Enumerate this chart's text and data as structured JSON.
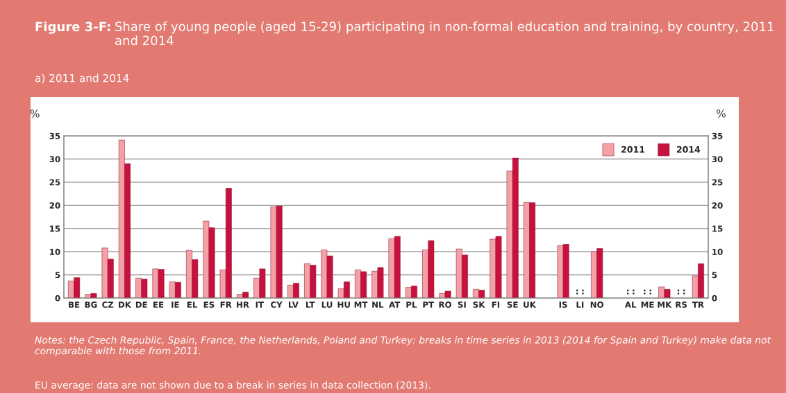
{
  "chart_data": {
    "type": "bar",
    "title": "Figure 3-F:",
    "subtitle": "Share of young people (aged 15-29) participating in non-formal education and training, by country, 2011 and 2014",
    "ylabel": "%",
    "y2label": "%",
    "categories": [
      "BE",
      "BG",
      "CZ",
      "DK",
      "DE",
      "EE",
      "IE",
      "EL",
      "ES",
      "FR",
      "HR",
      "IT",
      "CY",
      "LV",
      "LT",
      "LU",
      "HU",
      "MT",
      "NL",
      "AT",
      "PL",
      "PT",
      "RO",
      "SI",
      "SK",
      "FI",
      "SE",
      "UK",
      null,
      "IS",
      "LI",
      "NO",
      null,
      "AL",
      "ME",
      "MK",
      "RS",
      "TR"
    ],
    "series": [
      {
        "name": "2011",
        "color": "#f4a0a6",
        "values": [
          3.7,
          0.8,
          10.8,
          34.1,
          4.3,
          6.3,
          3.5,
          10.3,
          16.6,
          6.1,
          0.8,
          4.3,
          19.7,
          2.8,
          7.4,
          10.4,
          2.0,
          6.1,
          5.8,
          12.8,
          2.3,
          10.4,
          1.0,
          10.6,
          1.9,
          12.7,
          27.4,
          20.7,
          null,
          11.3,
          null,
          10.0,
          null,
          null,
          null,
          2.4,
          null,
          4.8
        ],
        "value_labels": [
          null,
          null,
          null,
          null,
          null,
          null,
          null,
          null,
          null,
          null,
          null,
          null,
          null,
          null,
          null,
          null,
          null,
          null,
          null,
          null,
          null,
          null,
          null,
          null,
          null,
          null,
          null,
          null,
          null,
          null,
          ":",
          null,
          null,
          ":",
          ":",
          null,
          ":",
          null
        ]
      },
      {
        "name": "2014",
        "color": "#c8103e",
        "values": [
          4.4,
          1.0,
          8.4,
          29.0,
          4.1,
          6.2,
          3.4,
          8.3,
          15.2,
          23.7,
          1.3,
          6.3,
          19.9,
          3.2,
          7.1,
          9.1,
          3.5,
          5.7,
          6.6,
          13.3,
          2.6,
          12.4,
          1.5,
          9.3,
          1.7,
          13.3,
          30.2,
          20.6,
          null,
          11.6,
          null,
          10.7,
          null,
          null,
          null,
          1.9,
          null,
          7.4
        ],
        "value_labels": [
          null,
          null,
          null,
          null,
          null,
          null,
          null,
          null,
          null,
          null,
          null,
          null,
          null,
          null,
          null,
          null,
          null,
          null,
          null,
          null,
          null,
          null,
          null,
          null,
          null,
          null,
          null,
          null,
          null,
          null,
          ":",
          null,
          null,
          ":",
          ":",
          null,
          ":",
          null
        ]
      }
    ],
    "ylim": [
      0,
      35
    ],
    "yticks": [
      0,
      5,
      10,
      15,
      20,
      25,
      30,
      35
    ],
    "y2lim": [
      0,
      35
    ],
    "y2ticks": [
      0,
      5,
      10,
      15,
      20,
      25,
      30,
      35
    ],
    "grid": "y",
    "legend": "top right",
    "annotations": [
      "a) 2011 and 2014",
      "Notes: the Czech Republic, Spain, France, the Netherlands, Poland and Turkey: breaks in time series in 2013 (2014 for Spain and Turkey) make data not comparable with those from 2011.",
      "EU average: data are not shown due to a break in series in data collection (2013)."
    ]
  }
}
